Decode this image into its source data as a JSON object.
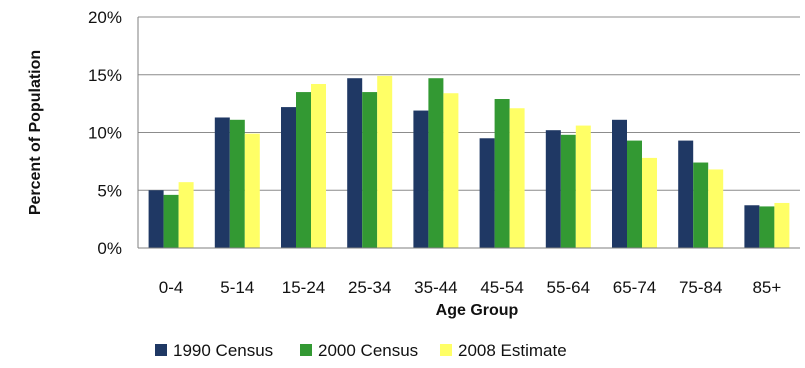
{
  "chart_data": {
    "type": "bar",
    "xlabel": "Age Group",
    "ylabel": "Percent of Population",
    "ylim": [
      0,
      20
    ],
    "yticks": [
      0,
      5,
      10,
      15,
      20
    ],
    "ytick_labels": [
      "0%",
      "5%",
      "10%",
      "15%",
      "20%"
    ],
    "grid": "horizontal",
    "legend_position": "bottom",
    "categories": [
      "0-4",
      "5-14",
      "15-24",
      "25-34",
      "35-44",
      "45-54",
      "55-64",
      "65-74",
      "75-84",
      "85+"
    ],
    "series": [
      {
        "name": "1990 Census",
        "color": "#1f3864",
        "values": [
          5.0,
          11.3,
          12.2,
          14.7,
          11.9,
          9.5,
          10.2,
          11.1,
          9.3,
          3.7
        ]
      },
      {
        "name": "2000 Census",
        "color": "#339933",
        "values": [
          4.6,
          11.1,
          13.5,
          13.5,
          14.7,
          12.9,
          9.8,
          9.3,
          7.4,
          3.6
        ]
      },
      {
        "name": "2008 Estimate",
        "color": "#ffff66",
        "values": [
          5.7,
          9.9,
          14.2,
          14.9,
          13.4,
          12.1,
          10.6,
          7.8,
          6.8,
          3.9
        ]
      }
    ]
  }
}
